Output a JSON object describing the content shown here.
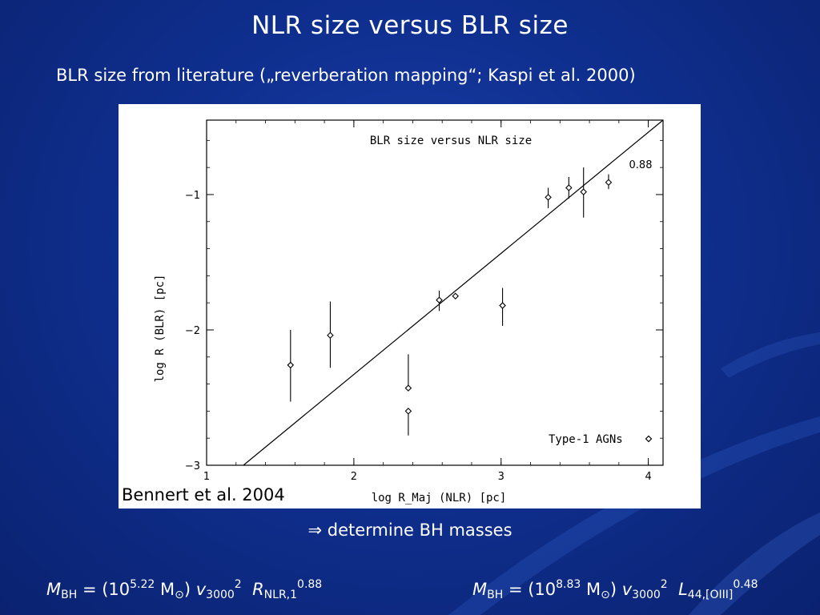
{
  "slide": {
    "title": "NLR size versus BLR size",
    "subtitle": "BLR size from literature („reverberation mapping“; Kaspi et al. 2000)",
    "citation": "Bennert et al. 2004",
    "conclusion_arrow": "⇒",
    "conclusion_text": "determine BH masses"
  },
  "formulas": {
    "left": {
      "m": "M",
      "m_sub": "BH",
      "eq": " = (10",
      "exp": "5.22",
      "msun": " M",
      "sun_sub": "⊙",
      "close": ") ",
      "v": "v",
      "v_sub": "3000",
      "v_sup": "2",
      "r": "R",
      "r_sub": "NLR,1",
      "r_sup": "0.88"
    },
    "right": {
      "m": "M",
      "m_sub": "BH",
      "eq": " = (10",
      "exp": "8.83",
      "msun": " M",
      "sun_sub": "⊙",
      "close": ") ",
      "v": "v",
      "v_sub": "3000",
      "v_sup": "2",
      "l": "L",
      "l_sub": "44,[OIII]",
      "l_sup": "0.48"
    }
  },
  "chart_data": {
    "type": "scatter",
    "title": "BLR size versus NLR size",
    "xlabel": "log R_Maj (NLR) [pc]",
    "ylabel": "log R (BLR) [pc]",
    "xlim": [
      1,
      4.1
    ],
    "ylim": [
      -3,
      -0.45
    ],
    "xticks": [
      1,
      2,
      3,
      4
    ],
    "xtick_labels": [
      "1",
      "2",
      "3",
      "4"
    ],
    "yticks": [
      -3,
      -2,
      -1
    ],
    "ytick_labels": [
      "−3",
      "−2",
      "−1"
    ],
    "legend": {
      "label": "Type-1 AGNs",
      "placement": "bottom-right"
    },
    "fit_label": "0.88",
    "fit_line": {
      "x": [
        1.25,
        4.1
      ],
      "y": [
        -3.0,
        -0.45
      ]
    },
    "series": [
      {
        "name": "Type-1 AGNs",
        "points": [
          {
            "x": 1.57,
            "y": -2.26,
            "yerr_low": -2.53,
            "yerr_high": -2.0
          },
          {
            "x": 1.84,
            "y": -2.04,
            "yerr_low": -2.28,
            "yerr_high": -1.79
          },
          {
            "x": 2.37,
            "y": -2.43,
            "yerr_low": -2.43,
            "yerr_high": -2.18
          },
          {
            "x": 2.37,
            "y": -2.6,
            "yerr_low": -2.78,
            "yerr_high": -2.6
          },
          {
            "x": 2.58,
            "y": -1.78,
            "yerr_low": -1.86,
            "yerr_high": -1.71
          },
          {
            "x": 2.69,
            "y": -1.75,
            "yerr_low": -1.77,
            "yerr_high": -1.73
          },
          {
            "x": 3.01,
            "y": -1.82,
            "yerr_low": -1.97,
            "yerr_high": -1.69
          },
          {
            "x": 3.32,
            "y": -1.02,
            "yerr_low": -1.1,
            "yerr_high": -0.95
          },
          {
            "x": 3.46,
            "y": -0.95,
            "yerr_low": -1.03,
            "yerr_high": -0.87
          },
          {
            "x": 3.56,
            "y": -0.98,
            "yerr_low": -1.17,
            "yerr_high": -0.8
          },
          {
            "x": 3.73,
            "y": -0.91,
            "yerr_low": -0.96,
            "yerr_high": -0.85
          }
        ]
      }
    ]
  }
}
